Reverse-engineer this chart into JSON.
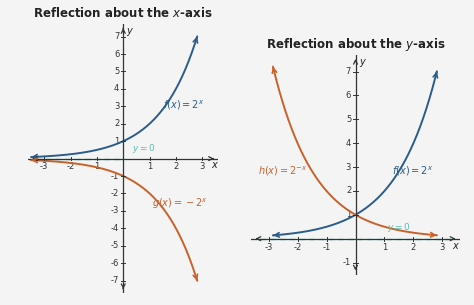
{
  "title_left": "Reflection about the ",
  "title_left_italic": "x",
  "title_left_suffix": "-axis",
  "title_right": "Reflection about the ",
  "title_right_italic": "y",
  "title_right_suffix": "-axis",
  "xlim": [
    -3.6,
    3.6
  ],
  "ylim_left": [
    -7.7,
    7.7
  ],
  "ylim_right": [
    -1.5,
    7.7
  ],
  "xticks": [
    -3,
    -2,
    -1,
    1,
    2,
    3
  ],
  "yticks_left": [
    -7,
    -6,
    -5,
    -4,
    -3,
    -2,
    -1,
    1,
    2,
    3,
    4,
    5,
    6,
    7
  ],
  "yticks_right": [
    -1,
    1,
    2,
    3,
    4,
    5,
    6,
    7
  ],
  "blue_color": "#2b5c8a",
  "orange_color": "#c8622a",
  "asym_color": "#5abcb8",
  "bg_color": "#f4f4f4",
  "title_fontsize": 8.5,
  "tick_fontsize": 6,
  "label_fontsize": 7
}
